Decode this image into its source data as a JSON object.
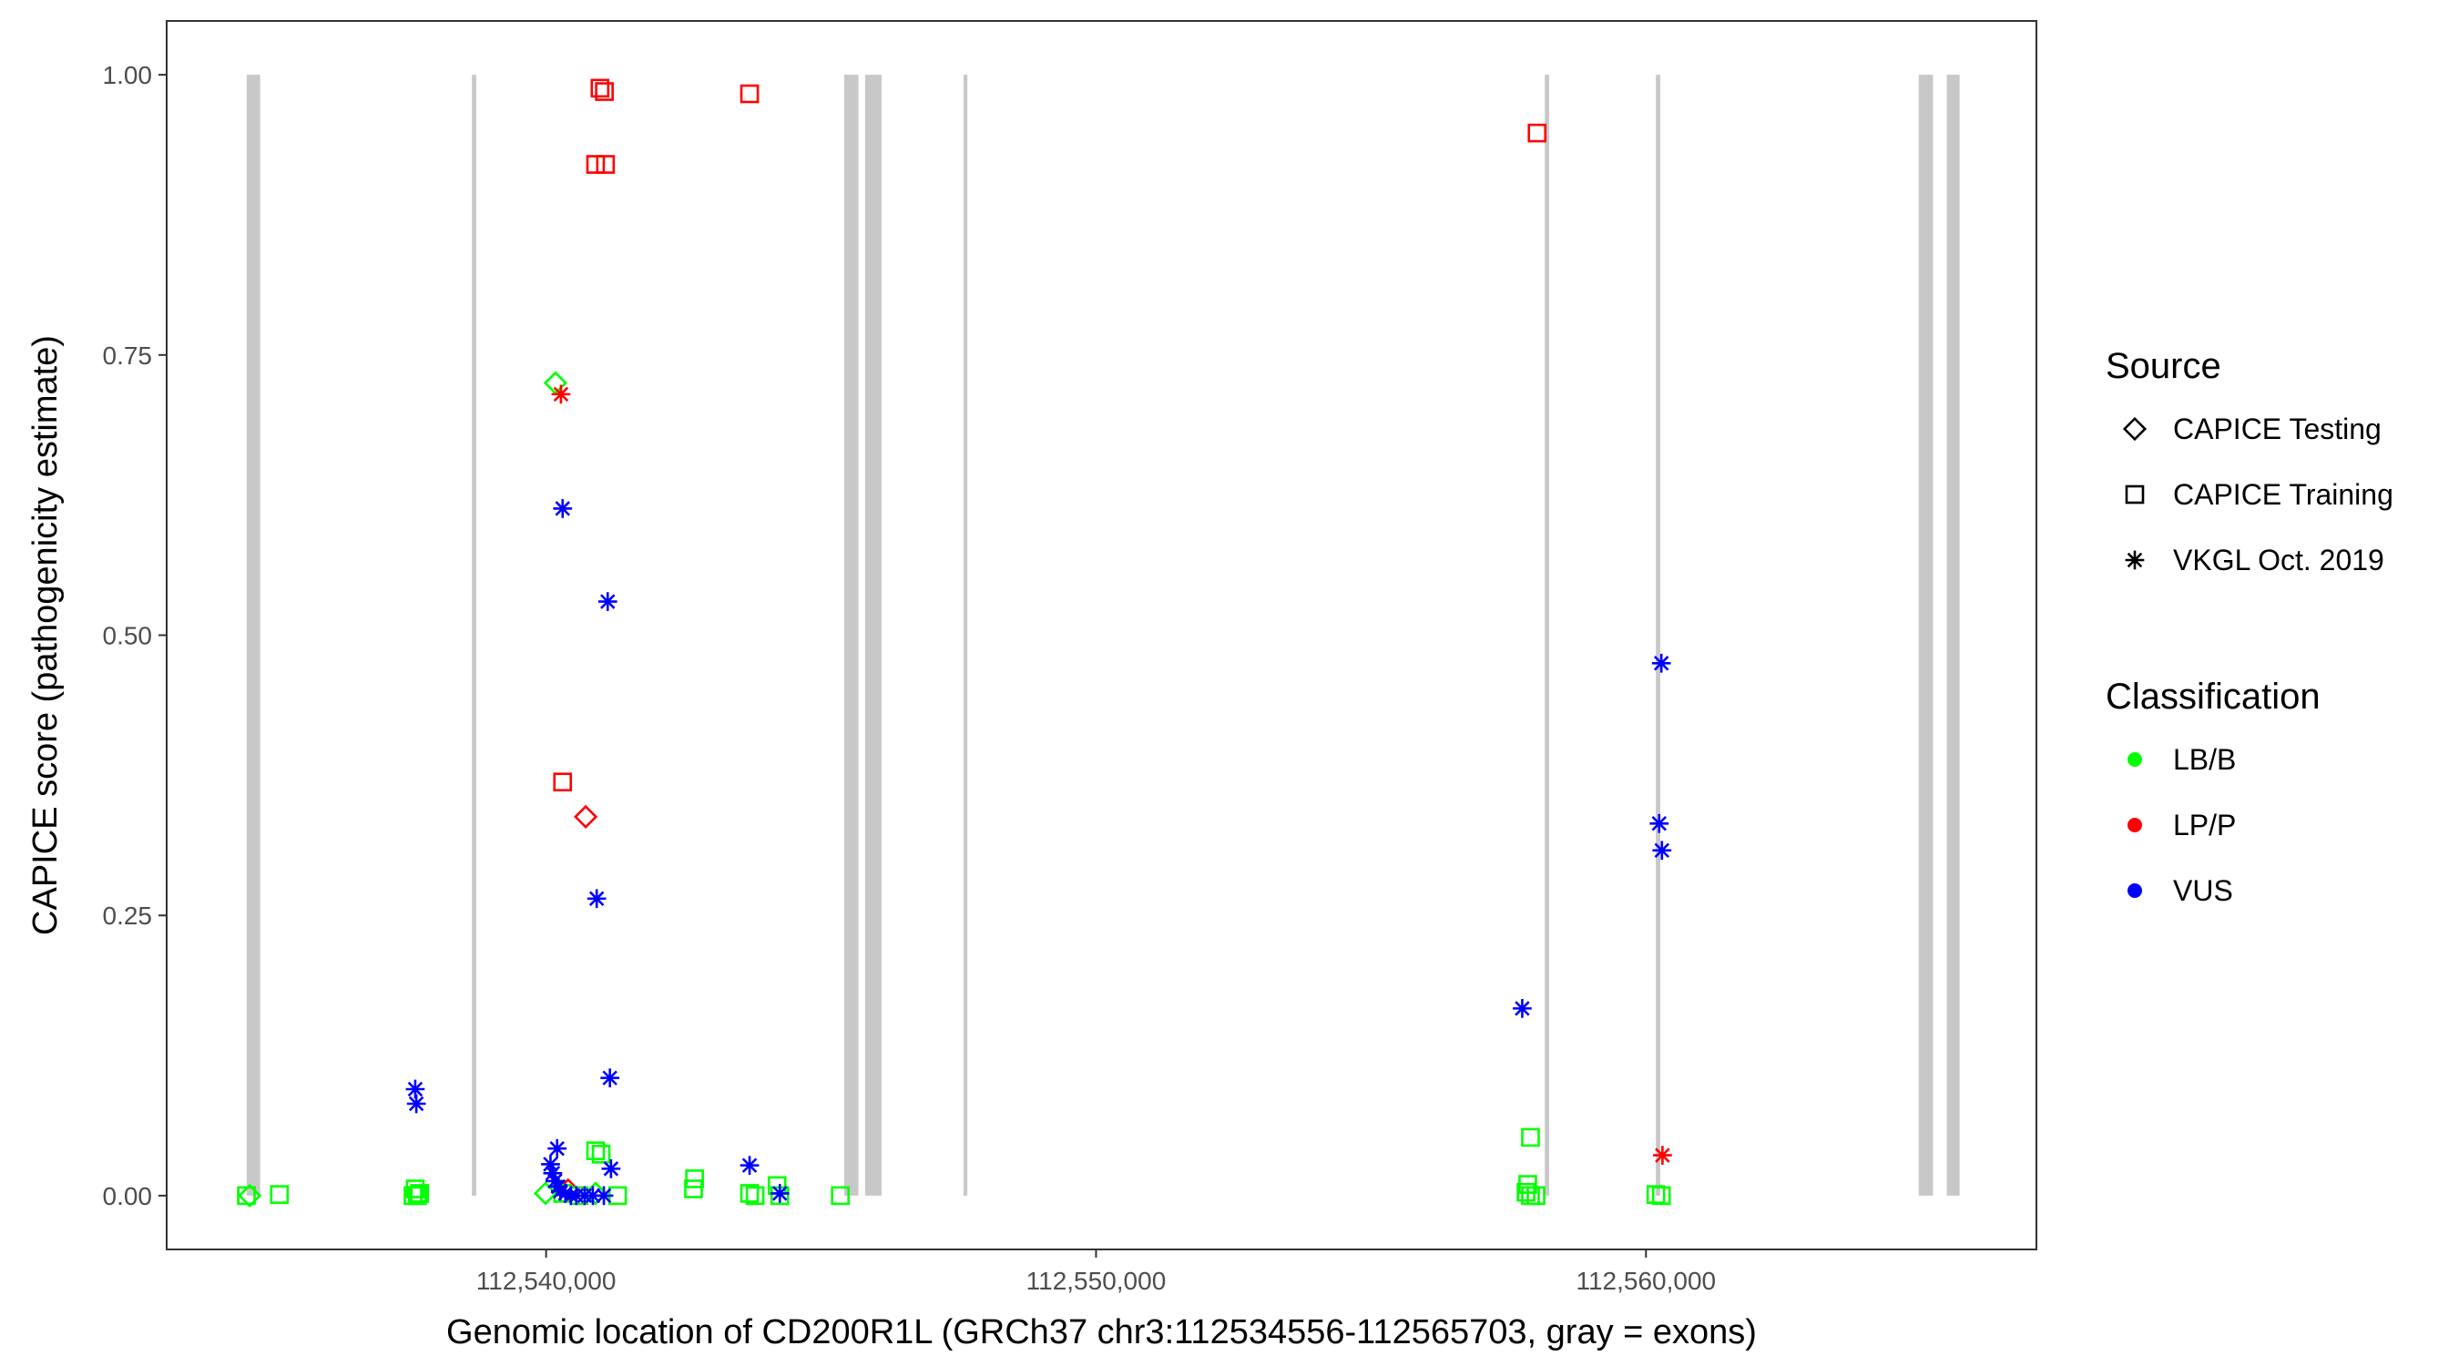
{
  "chart_data": {
    "type": "scatter",
    "title": "",
    "xlabel": "Genomic location of CD200R1L (GRCh37 chr3:112534556-112565703, gray = exons)",
    "ylabel": "CAPICE score (pathogenicity estimate)",
    "xlim": [
      112533100,
      112567100
    ],
    "ylim": [
      -0.048,
      1.048
    ],
    "x_ticks": [
      112540000,
      112550000,
      112560000
    ],
    "x_tick_labels": [
      "112,540,000",
      "112,550,000",
      "112,560,000"
    ],
    "y_ticks": [
      0,
      0.25,
      0.5,
      0.75,
      1.0
    ],
    "y_tick_labels": [
      "0.00",
      "0.25",
      "0.50",
      "0.75",
      "1.00"
    ],
    "grid": false,
    "exon_color": "#c8c8c8",
    "exons": [
      {
        "start": 112534556,
        "end": 112534800
      },
      {
        "start": 112538650,
        "end": 112538730
      },
      {
        "start": 112545420,
        "end": 112545680
      },
      {
        "start": 112545800,
        "end": 112546100
      },
      {
        "start": 112547590,
        "end": 112547660
      },
      {
        "start": 112558160,
        "end": 112558240
      },
      {
        "start": 112560180,
        "end": 112560260
      },
      {
        "start": 112564960,
        "end": 112565220
      },
      {
        "start": 112565470,
        "end": 112565703
      }
    ],
    "legend": {
      "placement": "right",
      "source_title": "Source",
      "source_entries": [
        {
          "label": "CAPICE Testing",
          "shape": "diamond"
        },
        {
          "label": "CAPICE Training",
          "shape": "square"
        },
        {
          "label": "VKGL Oct. 2019",
          "shape": "asterisk"
        }
      ],
      "class_title": "Classification",
      "class_entries": [
        {
          "label": "LB/B",
          "color": "#00ff00"
        },
        {
          "label": "LP/P",
          "color": "#ff0000"
        },
        {
          "label": "VUS",
          "color": "#0000ff"
        }
      ]
    },
    "series": [
      {
        "source": "CAPICE Testing",
        "class": "LB/B",
        "shape": "diamond",
        "color": "#00ff00",
        "points": [
          [
            112534610,
            0.0
          ],
          [
            112540170,
            0.725
          ],
          [
            112539990,
            0.002
          ],
          [
            112540900,
            0.002
          ]
        ]
      },
      {
        "source": "CAPICE Testing",
        "class": "LP/P",
        "shape": "diamond",
        "color": "#ff0000",
        "points": [
          [
            112540720,
            0.338
          ],
          [
            112540400,
            0.005
          ]
        ]
      },
      {
        "source": "CAPICE Training",
        "class": "LB/B",
        "shape": "square",
        "color": "#00ff00",
        "points": [
          [
            112534550,
            0.0
          ],
          [
            112535150,
            0.001
          ],
          [
            112537620,
            0.006
          ],
          [
            112537700,
            0.002
          ],
          [
            112537580,
            0.0
          ],
          [
            112537660,
            0.0
          ],
          [
            112540900,
            0.04
          ],
          [
            112541000,
            0.037
          ],
          [
            112540300,
            0.002
          ],
          [
            112540600,
            0.0
          ],
          [
            112541300,
            0.0
          ],
          [
            112542700,
            0.015
          ],
          [
            112542680,
            0.006
          ],
          [
            112543700,
            0.002
          ],
          [
            112543800,
            0.0
          ],
          [
            112544200,
            0.009
          ],
          [
            112544250,
            0.0
          ],
          [
            112545350,
            0.0
          ],
          [
            112557900,
            0.052
          ],
          [
            112557850,
            0.01
          ],
          [
            112557820,
            0.003
          ],
          [
            112557900,
            0.0
          ],
          [
            112558000,
            0.0
          ],
          [
            112560180,
            0.001
          ],
          [
            112560280,
            0.0
          ]
        ]
      },
      {
        "source": "CAPICE Training",
        "class": "LP/P",
        "shape": "square",
        "color": "#ff0000",
        "points": [
          [
            112540980,
            0.988
          ],
          [
            112541060,
            0.985
          ],
          [
            112540900,
            0.92
          ],
          [
            112541080,
            0.92
          ],
          [
            112543700,
            0.983
          ],
          [
            112540300,
            0.369
          ],
          [
            112558020,
            0.948
          ]
        ]
      },
      {
        "source": "VKGL Oct. 2019",
        "class": "LP/P",
        "shape": "asterisk",
        "color": "#ff0000",
        "points": [
          [
            112540270,
            0.715
          ],
          [
            112560300,
            0.036
          ]
        ]
      },
      {
        "source": "VKGL Oct. 2019",
        "class": "VUS",
        "shape": "asterisk",
        "color": "#0000ff",
        "points": [
          [
            112537620,
            0.095
          ],
          [
            112537640,
            0.082
          ],
          [
            112540300,
            0.613
          ],
          [
            112541120,
            0.53
          ],
          [
            112540920,
            0.265
          ],
          [
            112541160,
            0.105
          ],
          [
            112540200,
            0.042
          ],
          [
            112540080,
            0.028
          ],
          [
            112540120,
            0.02
          ],
          [
            112540160,
            0.013
          ],
          [
            112540220,
            0.008
          ],
          [
            112540260,
            0.004
          ],
          [
            112540350,
            0.002
          ],
          [
            112540450,
            0.0
          ],
          [
            112540550,
            0.0
          ],
          [
            112540700,
            0.0
          ],
          [
            112540850,
            0.0
          ],
          [
            112541050,
            0.0
          ],
          [
            112541180,
            0.024
          ],
          [
            112543700,
            0.027
          ],
          [
            112544250,
            0.002
          ],
          [
            112557750,
            0.167
          ],
          [
            112560280,
            0.475
          ],
          [
            112560240,
            0.332
          ],
          [
            112560290,
            0.308
          ]
        ]
      }
    ]
  }
}
